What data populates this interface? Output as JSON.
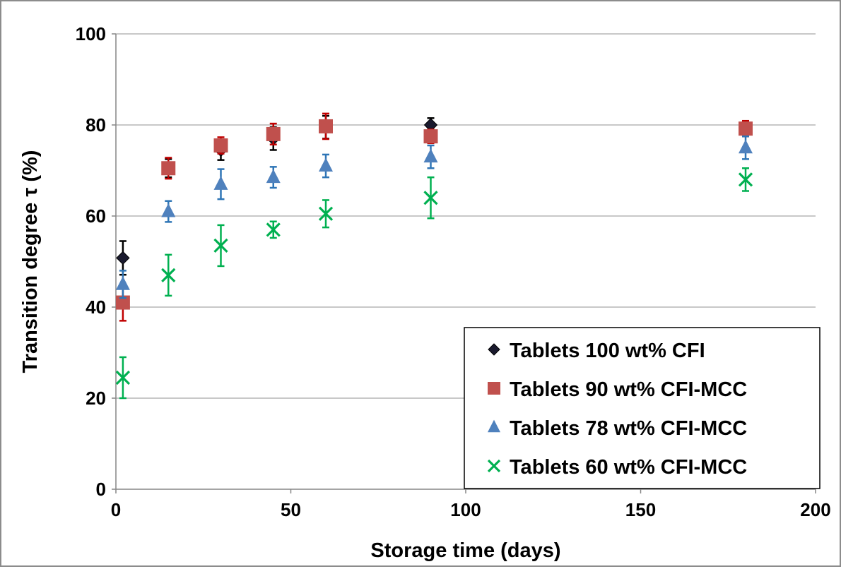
{
  "chart_data": {
    "type": "scatter",
    "title": "",
    "xlabel": "Storage time (days)",
    "ylabel": "Transition degree τ (%)",
    "xlim": [
      0,
      200
    ],
    "ylim": [
      0,
      100
    ],
    "xticks": [
      0,
      50,
      100,
      150,
      200
    ],
    "yticks": [
      0,
      20,
      40,
      60,
      80,
      100
    ],
    "grid": "horizontal",
    "legend_position": "bottom-right",
    "series": [
      {
        "name": "Tablets 100 wt% CFI",
        "marker": "diamond",
        "color": "#1a1a2e",
        "error_color": "#000000",
        "points": [
          {
            "x": 2,
            "y": 50.8,
            "err": 3.7
          },
          {
            "x": 15,
            "y": 70.5,
            "err": 2.0
          },
          {
            "x": 30,
            "y": 74.5,
            "err": 2.2
          },
          {
            "x": 45,
            "y": 77.0,
            "err": 2.5
          },
          {
            "x": 60,
            "y": 79.5,
            "err": 2.5
          },
          {
            "x": 90,
            "y": 80.0,
            "err": 1.5
          },
          {
            "x": 180,
            "y": 79.0,
            "err": 1.5
          }
        ]
      },
      {
        "name": "Tablets 90 wt% CFI-MCC",
        "marker": "square",
        "color": "#c0504d",
        "error_color": "#c00000",
        "points": [
          {
            "x": 2,
            "y": 41.0,
            "err": 4.0
          },
          {
            "x": 15,
            "y": 70.5,
            "err": 2.3
          },
          {
            "x": 30,
            "y": 75.5,
            "err": 1.8
          },
          {
            "x": 45,
            "y": 78.0,
            "err": 2.3
          },
          {
            "x": 60,
            "y": 79.7,
            "err": 2.8
          },
          {
            "x": 90,
            "y": 77.5,
            "err": 1.5
          },
          {
            "x": 180,
            "y": 79.2,
            "err": 1.7
          }
        ]
      },
      {
        "name": "Tablets 78 wt% CFI-MCC",
        "marker": "triangle",
        "color": "#4f81bd",
        "error_color": "#2e75b6",
        "points": [
          {
            "x": 2,
            "y": 45.0,
            "err": 3.0
          },
          {
            "x": 15,
            "y": 61.0,
            "err": 2.3
          },
          {
            "x": 30,
            "y": 67.0,
            "err": 3.3
          },
          {
            "x": 45,
            "y": 68.5,
            "err": 2.3
          },
          {
            "x": 60,
            "y": 71.0,
            "err": 2.5
          },
          {
            "x": 90,
            "y": 73.0,
            "err": 2.5
          },
          {
            "x": 180,
            "y": 75.0,
            "err": 2.5
          }
        ]
      },
      {
        "name": "Tablets 60 wt% CFI-MCC",
        "marker": "x",
        "color": "#00b050",
        "error_color": "#00b050",
        "points": [
          {
            "x": 2,
            "y": 24.5,
            "err": 4.5
          },
          {
            "x": 15,
            "y": 47.0,
            "err": 4.5
          },
          {
            "x": 30,
            "y": 53.5,
            "err": 4.5
          },
          {
            "x": 45,
            "y": 57.0,
            "err": 1.8
          },
          {
            "x": 60,
            "y": 60.5,
            "err": 3.0
          },
          {
            "x": 90,
            "y": 64.0,
            "err": 4.5
          },
          {
            "x": 180,
            "y": 68.0,
            "err": 2.5
          }
        ]
      }
    ]
  }
}
